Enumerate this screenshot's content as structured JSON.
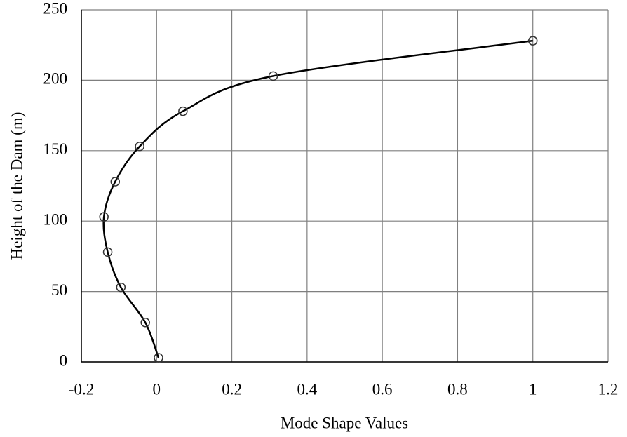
{
  "chart_data": {
    "type": "line",
    "x_label": "Mode Shape Values",
    "y_label": "Height of the Dam (m)",
    "x": [
      0.005,
      -0.03,
      -0.095,
      -0.13,
      -0.14,
      -0.11,
      -0.045,
      0.07,
      0.31,
      1.0
    ],
    "values": [
      3,
      28,
      53,
      78,
      103,
      128,
      153,
      178,
      203,
      228
    ],
    "color": "#000000",
    "xlim": [
      -0.2,
      1.2
    ],
    "xticks": [
      -0.2,
      0,
      0.2,
      0.4,
      0.6,
      0.8,
      1,
      1.2
    ],
    "ylim": [
      0,
      250
    ],
    "yticks": [
      0,
      50,
      100,
      150,
      200,
      250
    ],
    "grid": true,
    "marker": "circle"
  }
}
